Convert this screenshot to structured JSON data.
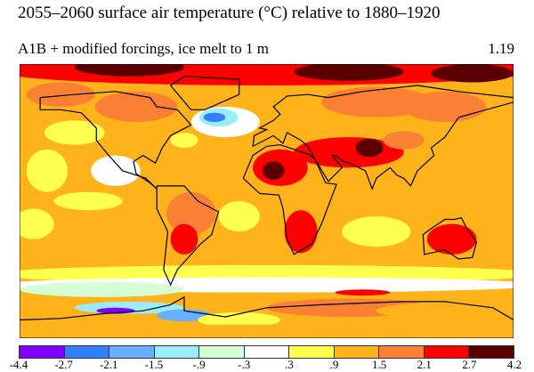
{
  "title": "2055–2060 surface air temperature (°C) relative to 1880–1920",
  "subtitle": "A1B + modified forcings, ice melt to 1 m",
  "global_mean": "1.19",
  "colorbar": {
    "ticks": [
      "-4.4",
      "-2.7",
      "-2.1",
      "-1.5",
      "-.9",
      "-.3",
      ".3",
      ".9",
      "1.5",
      "2.1",
      "2.7",
      "4.2"
    ],
    "colors": [
      "#7f00ff",
      "#2f7fff",
      "#66b0ff",
      "#99ecff",
      "#d4ffd4",
      "#ffffff",
      "#ffff4d",
      "#ffb31a",
      "#fa8033",
      "#ff0000",
      "#5a0000"
    ]
  }
}
